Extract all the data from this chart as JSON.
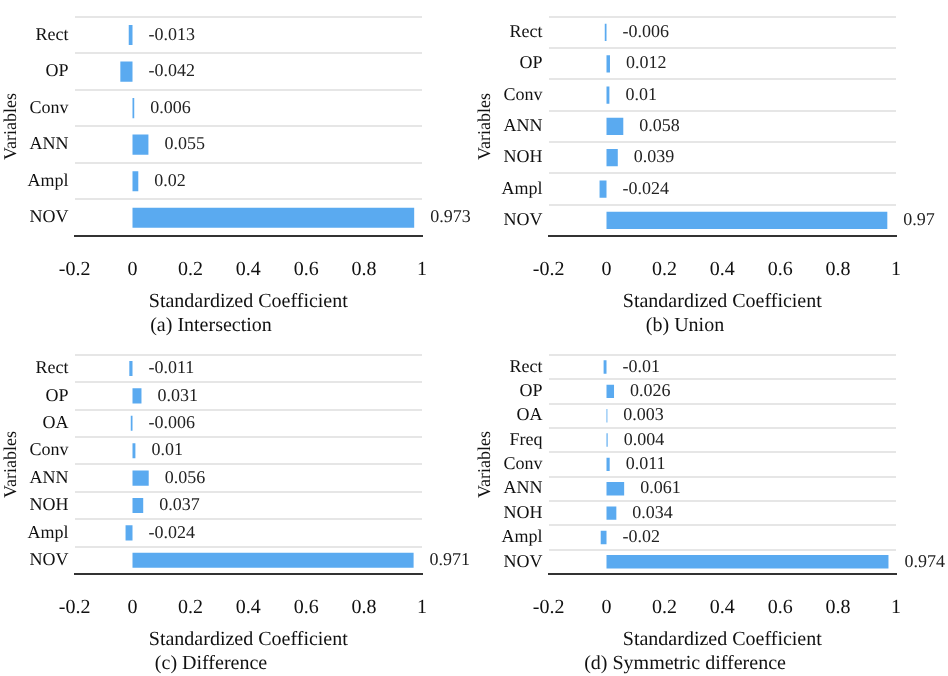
{
  "chart_data": [
    {
      "type": "bar",
      "orientation": "horizontal",
      "title": "(a) Intersection",
      "xlabel": "Standardized Coefficient",
      "ylabel": "Variables",
      "categories": [
        "Rect",
        "OP",
        "Conv",
        "ANN",
        "Ampl",
        "NOV"
      ],
      "values": [
        -0.013,
        -0.042,
        0.006,
        0.055,
        0.02,
        0.973
      ],
      "data_labels": true,
      "color": "#5aaaf0",
      "xlim": [
        -0.2,
        1
      ],
      "xticks": [
        -0.2,
        0,
        0.2,
        0.4,
        0.6,
        0.8,
        1
      ],
      "grid": "y"
    },
    {
      "type": "bar",
      "orientation": "horizontal",
      "title": "(b) Union",
      "xlabel": "Standardized Coefficient",
      "ylabel": "Variables",
      "categories": [
        "Rect",
        "OP",
        "Conv",
        "ANN",
        "NOH",
        "Ampl",
        "NOV"
      ],
      "values": [
        -0.006,
        0.012,
        0.01,
        0.058,
        0.039,
        -0.024,
        0.97
      ],
      "data_labels": true,
      "color": "#5aaaf0",
      "xlim": [
        -0.2,
        1
      ],
      "xticks": [
        -0.2,
        0,
        0.2,
        0.4,
        0.6,
        0.8,
        1
      ],
      "grid": "y"
    },
    {
      "type": "bar",
      "orientation": "horizontal",
      "title": "(c) Difference",
      "xlabel": "Standardized Coefficient",
      "ylabel": "Variables",
      "categories": [
        "Rect",
        "OP",
        "OA",
        "Conv",
        "ANN",
        "NOH",
        "Ampl",
        "NOV"
      ],
      "values": [
        -0.011,
        0.031,
        -0.006,
        0.01,
        0.056,
        0.037,
        -0.024,
        0.971
      ],
      "data_labels": true,
      "color": "#5aaaf0",
      "xlim": [
        -0.2,
        1
      ],
      "xticks": [
        -0.2,
        0,
        0.2,
        0.4,
        0.6,
        0.8,
        1
      ],
      "grid": "y"
    },
    {
      "type": "bar",
      "orientation": "horizontal",
      "title": "(d) Symmetric difference",
      "xlabel": "Standardized Coefficient",
      "ylabel": "Variables",
      "categories": [
        "Rect",
        "OP",
        "OA",
        "Freq",
        "Conv",
        "ANN",
        "NOH",
        "Ampl",
        "NOV"
      ],
      "values": [
        -0.01,
        0.026,
        0.003,
        0.004,
        0.011,
        0.061,
        0.034,
        -0.02,
        0.974
      ],
      "data_labels": true,
      "color": "#5aaaf0",
      "xlim": [
        -0.2,
        1
      ],
      "xticks": [
        -0.2,
        0,
        0.2,
        0.4,
        0.6,
        0.8,
        1
      ],
      "grid": "y"
    }
  ]
}
